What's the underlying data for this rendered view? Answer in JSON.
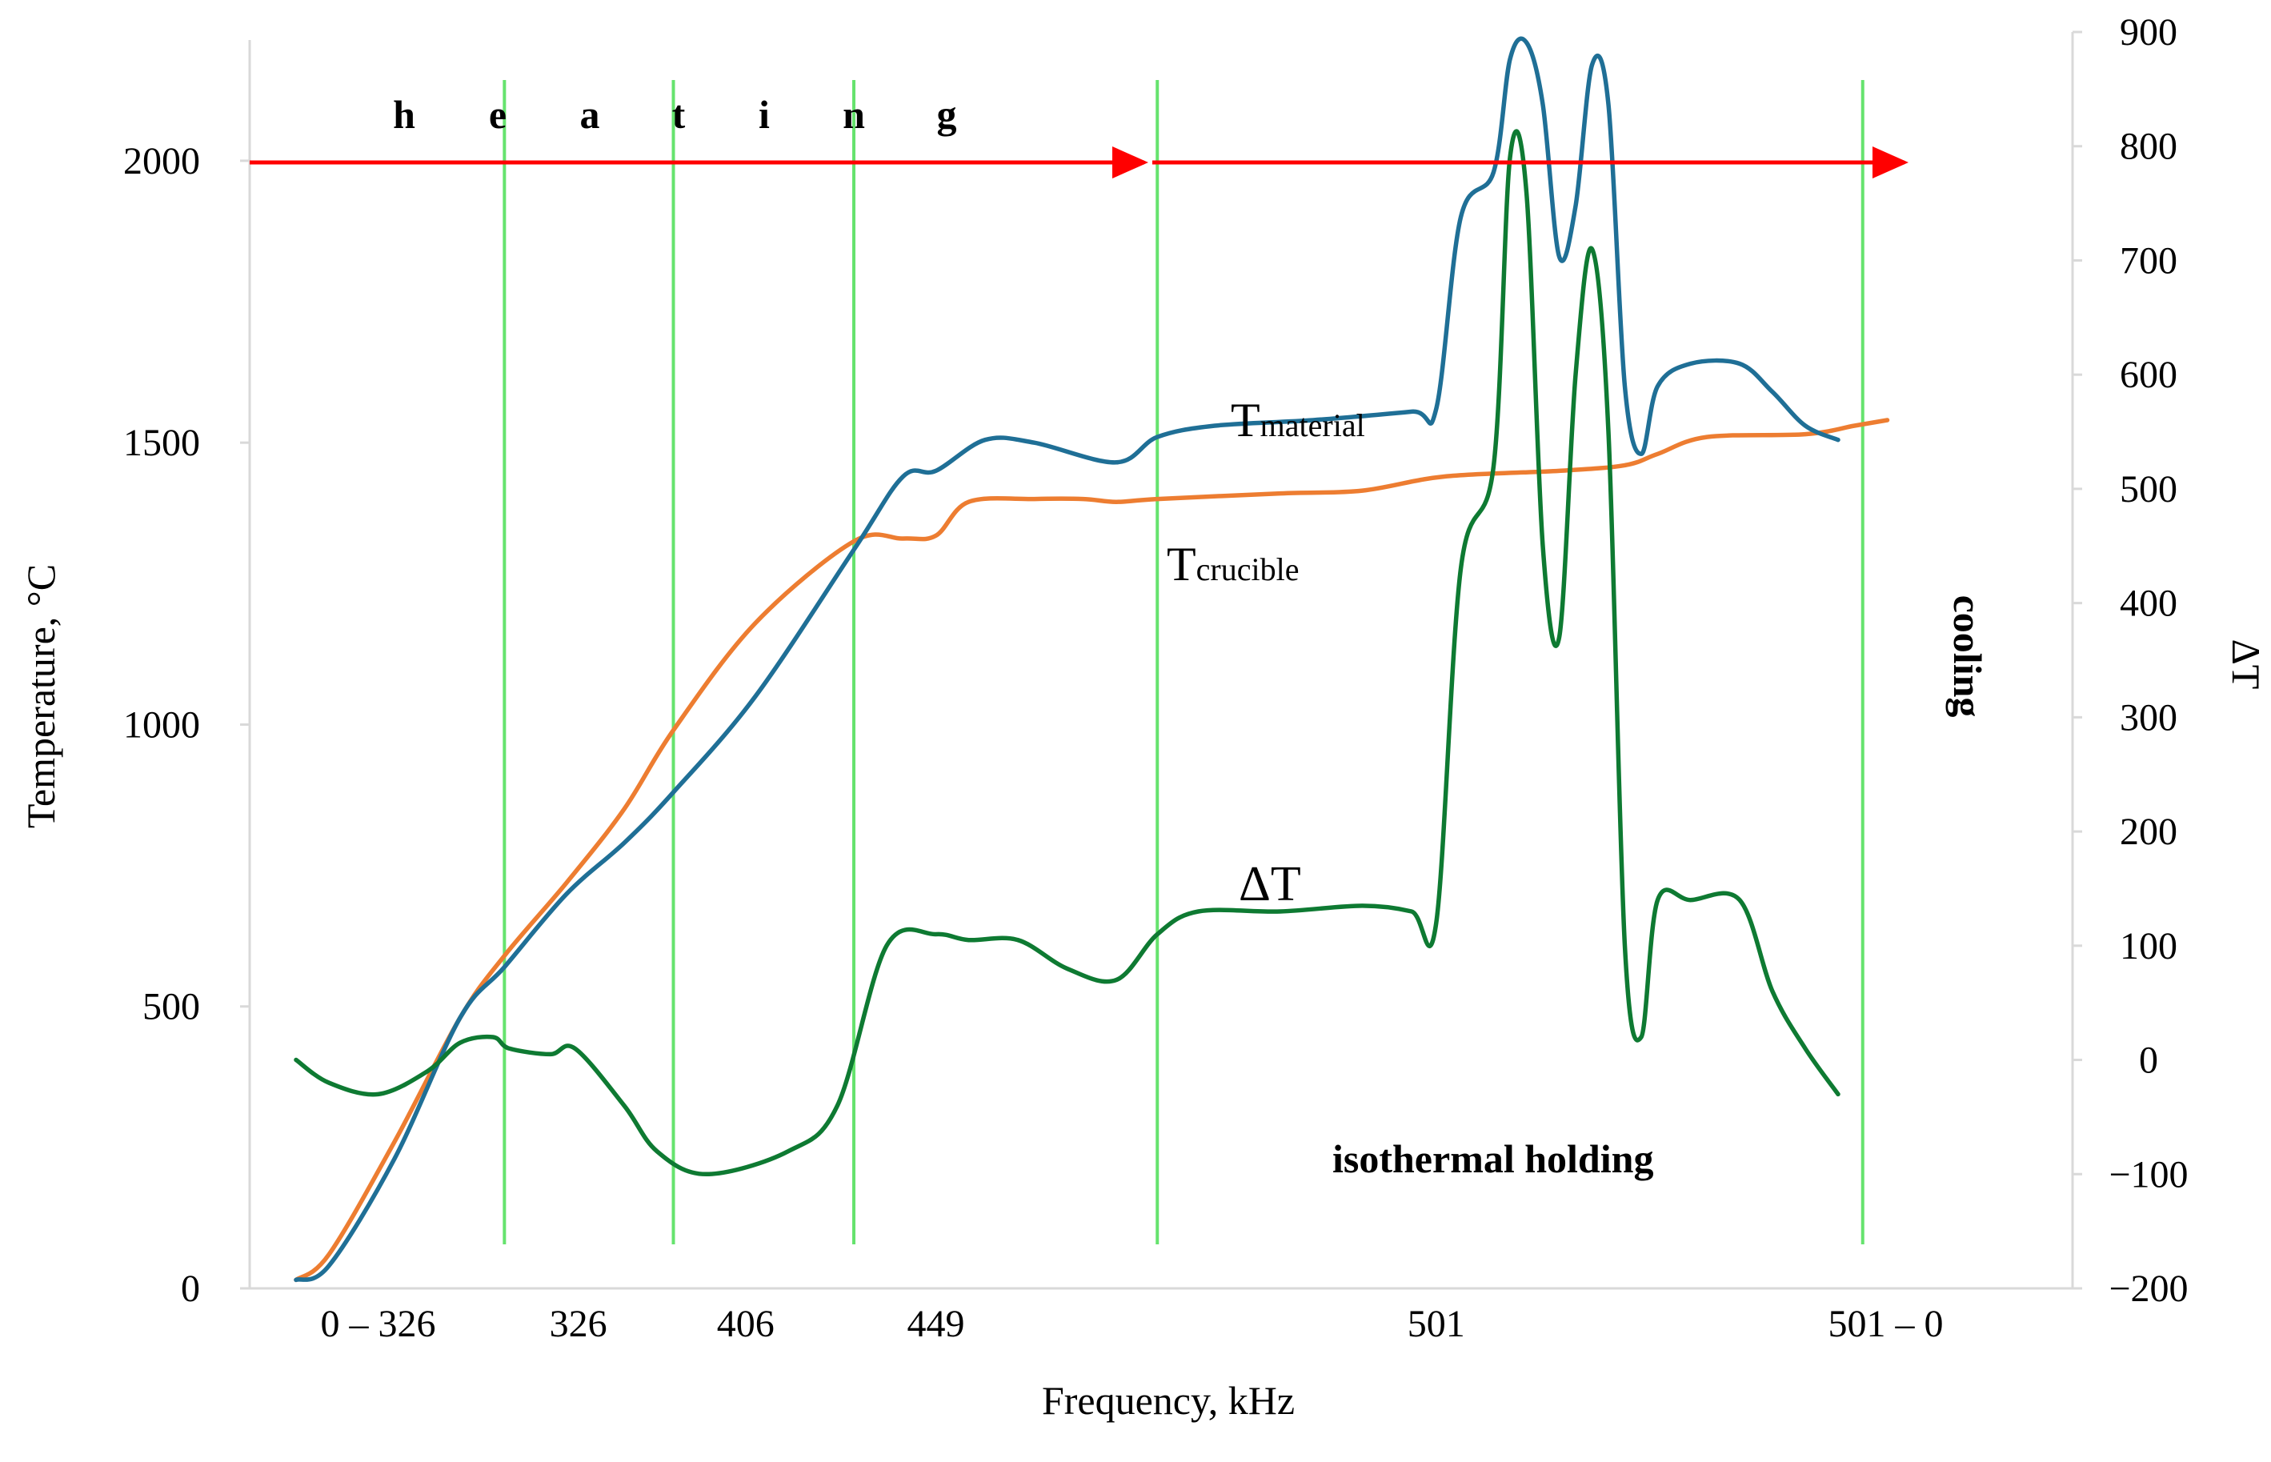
{
  "chart_data": {
    "type": "line",
    "title": "",
    "xlabel": "Frequency, kHz",
    "ylabel": "Temperature, °C",
    "y2label": "ΔT",
    "ylim": [
      0,
      2200
    ],
    "y2lim": [
      -200,
      900
    ],
    "xlim": [
      0,
      1
    ],
    "yticks": [
      0,
      500,
      1000,
      1500,
      2000
    ],
    "y2ticks": [
      -200,
      -100,
      0,
      100,
      200,
      300,
      400,
      500,
      600,
      700,
      800,
      900
    ],
    "y2tick_labels": [
      "−200",
      "−100",
      "0",
      "100",
      "200",
      "300",
      "400",
      "500",
      "600",
      "700",
      "800",
      "900"
    ],
    "xcategory_labels": [
      {
        "label": "0 – 326",
        "x": 0.05
      },
      {
        "label": "326",
        "x": 0.172
      },
      {
        "label": "406",
        "x": 0.274
      },
      {
        "label": "449",
        "x": 0.39
      },
      {
        "label": "501",
        "x": 0.695
      },
      {
        "label": "501 – 0",
        "x": 0.969
      }
    ],
    "phase_boundaries_x": [
      0.127,
      0.23,
      0.34,
      0.525,
      0.955
    ],
    "series": [
      {
        "name": "Tmaterial",
        "axis": "left",
        "color": "#1f6f96",
        "points": [
          [
            0.0,
            15
          ],
          [
            0.02,
            40
          ],
          [
            0.06,
            230
          ],
          [
            0.1,
            480
          ],
          [
            0.127,
            570
          ],
          [
            0.165,
            700
          ],
          [
            0.2,
            790
          ],
          [
            0.23,
            880
          ],
          [
            0.28,
            1050
          ],
          [
            0.34,
            1310
          ],
          [
            0.37,
            1440
          ],
          [
            0.39,
            1450
          ],
          [
            0.42,
            1505
          ],
          [
            0.45,
            1500
          ],
          [
            0.5,
            1465
          ],
          [
            0.525,
            1510
          ],
          [
            0.56,
            1530
          ],
          [
            0.62,
            1540
          ],
          [
            0.68,
            1555
          ],
          [
            0.695,
            1560
          ],
          [
            0.71,
            1900
          ],
          [
            0.73,
            1980
          ],
          [
            0.74,
            2180
          ],
          [
            0.75,
            2210
          ],
          [
            0.76,
            2100
          ],
          [
            0.77,
            1830
          ],
          [
            0.78,
            1920
          ],
          [
            0.79,
            2170
          ],
          [
            0.8,
            2100
          ],
          [
            0.81,
            1600
          ],
          [
            0.82,
            1480
          ],
          [
            0.83,
            1600
          ],
          [
            0.85,
            1640
          ],
          [
            0.88,
            1640
          ],
          [
            0.9,
            1590
          ],
          [
            0.92,
            1530
          ],
          [
            0.94,
            1505
          ]
        ]
      },
      {
        "name": "Tcrucible",
        "axis": "left",
        "color": "#ed7d31",
        "points": [
          [
            0.0,
            15
          ],
          [
            0.02,
            60
          ],
          [
            0.06,
            260
          ],
          [
            0.1,
            480
          ],
          [
            0.127,
            590
          ],
          [
            0.165,
            720
          ],
          [
            0.2,
            850
          ],
          [
            0.23,
            990
          ],
          [
            0.28,
            1180
          ],
          [
            0.34,
            1325
          ],
          [
            0.37,
            1330
          ],
          [
            0.39,
            1335
          ],
          [
            0.41,
            1395
          ],
          [
            0.45,
            1400
          ],
          [
            0.48,
            1400
          ],
          [
            0.5,
            1395
          ],
          [
            0.525,
            1400
          ],
          [
            0.6,
            1410
          ],
          [
            0.65,
            1415
          ],
          [
            0.7,
            1440
          ],
          [
            0.77,
            1450
          ],
          [
            0.81,
            1460
          ],
          [
            0.83,
            1480
          ],
          [
            0.86,
            1510
          ],
          [
            0.92,
            1515
          ],
          [
            0.95,
            1530
          ],
          [
            0.97,
            1540
          ]
        ]
      },
      {
        "name": "ΔT",
        "axis": "right",
        "color": "#0e7a32",
        "points": [
          [
            0.0,
            0
          ],
          [
            0.02,
            -20
          ],
          [
            0.05,
            -30
          ],
          [
            0.08,
            -10
          ],
          [
            0.1,
            15
          ],
          [
            0.12,
            20
          ],
          [
            0.13,
            10
          ],
          [
            0.155,
            5
          ],
          [
            0.17,
            10
          ],
          [
            0.2,
            -40
          ],
          [
            0.22,
            -80
          ],
          [
            0.25,
            -100
          ],
          [
            0.3,
            -80
          ],
          [
            0.33,
            -40
          ],
          [
            0.36,
            100
          ],
          [
            0.39,
            110
          ],
          [
            0.41,
            105
          ],
          [
            0.44,
            105
          ],
          [
            0.47,
            80
          ],
          [
            0.5,
            70
          ],
          [
            0.525,
            110
          ],
          [
            0.55,
            130
          ],
          [
            0.6,
            130
          ],
          [
            0.65,
            135
          ],
          [
            0.68,
            130
          ],
          [
            0.695,
            120
          ],
          [
            0.71,
            430
          ],
          [
            0.73,
            520
          ],
          [
            0.74,
            790
          ],
          [
            0.75,
            760
          ],
          [
            0.76,
            450
          ],
          [
            0.77,
            370
          ],
          [
            0.78,
            600
          ],
          [
            0.79,
            710
          ],
          [
            0.8,
            550
          ],
          [
            0.81,
            100
          ],
          [
            0.82,
            20
          ],
          [
            0.83,
            140
          ],
          [
            0.85,
            140
          ],
          [
            0.88,
            140
          ],
          [
            0.9,
            60
          ],
          [
            0.92,
            10
          ],
          [
            0.94,
            -30
          ]
        ]
      }
    ],
    "annotations": {
      "heating_letters": [
        "h",
        "e",
        "a",
        "t",
        "i",
        "n",
        "g"
      ],
      "cooling": "cooling",
      "isothermal": "isothermal holding",
      "label_tmaterial": {
        "main": "T",
        "sub": "material"
      },
      "label_tcrucible": {
        "main": "T",
        "sub": "crucible"
      },
      "label_dt": "ΔT"
    }
  }
}
